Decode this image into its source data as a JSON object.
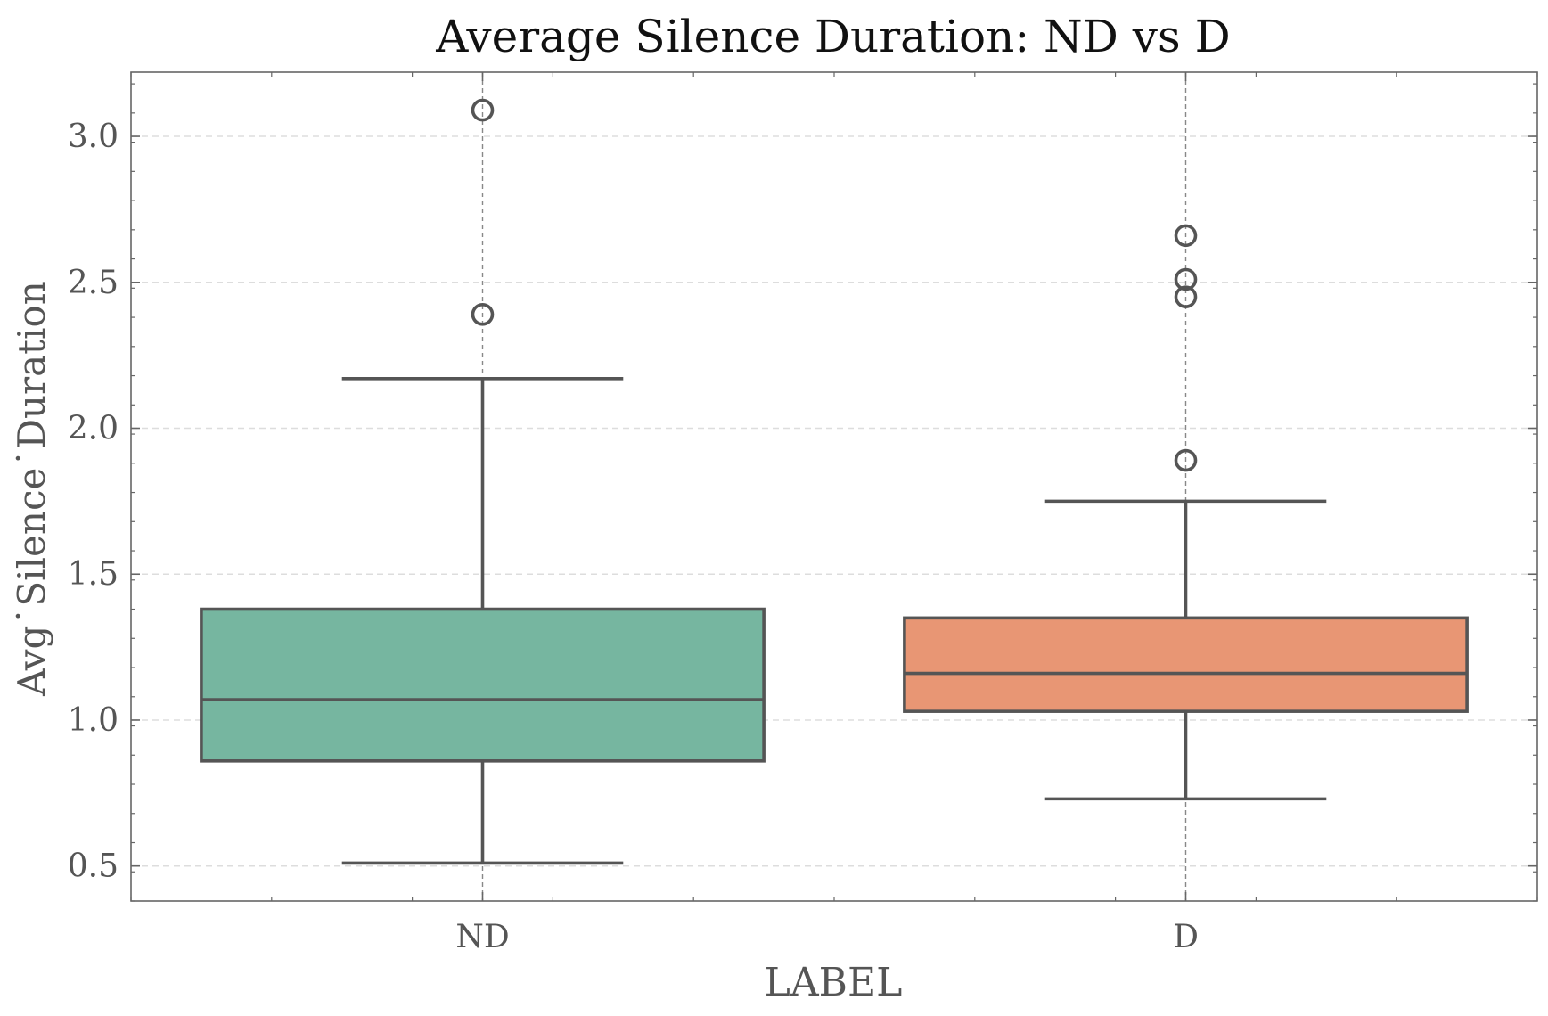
{
  "chart_data": {
    "type": "box",
    "title": "Average Silence Duration: ND vs D",
    "xlabel": "LABEL",
    "ylabel": "Avg˙Silence˙Duration",
    "categories": [
      "ND",
      "D"
    ],
    "ylim": [
      0.38,
      3.22
    ],
    "yticks": [
      0.5,
      1.0,
      1.5,
      2.0,
      2.5,
      3.0
    ],
    "ytick_labels": [
      "0.5",
      "1.0",
      "1.5",
      "2.0",
      "2.5",
      "3.0"
    ],
    "grid": true,
    "boxes": [
      {
        "category": "ND",
        "whisker_low": 0.51,
        "q1": 0.86,
        "median": 1.07,
        "q3": 1.38,
        "whisker_high": 2.17,
        "outliers": [
          2.39,
          3.09
        ],
        "color": "#76b6a0"
      },
      {
        "category": "D",
        "whisker_low": 0.73,
        "q1": 1.03,
        "median": 1.16,
        "q3": 1.35,
        "whisker_high": 1.75,
        "outliers": [
          1.89,
          2.45,
          2.51,
          2.66
        ],
        "color": "#e89674"
      }
    ],
    "colors": {
      "box_edge": "#555555",
      "axis": "#666666",
      "grid": "#dddddd"
    }
  }
}
